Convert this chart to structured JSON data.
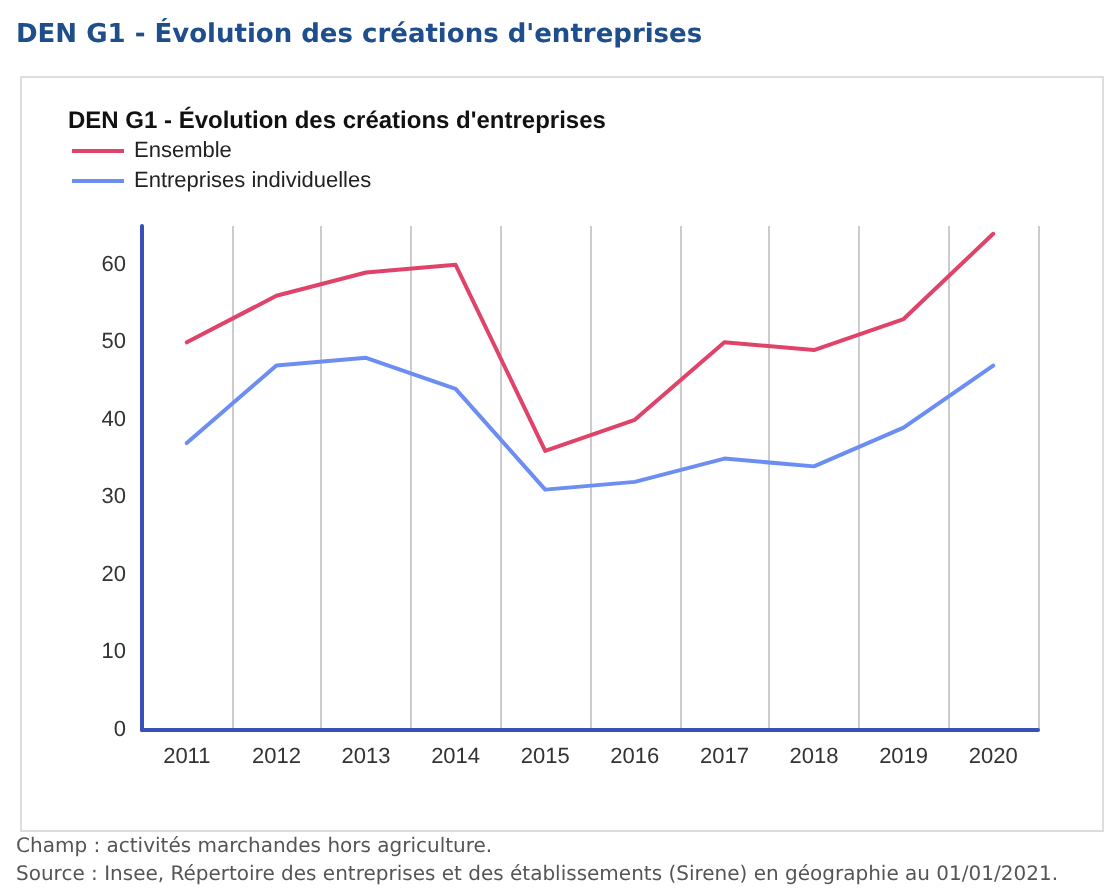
{
  "chart_data": {
    "type": "line",
    "title": "DEN G1 - Évolution des créations d'entreprises",
    "categories": [
      "2011",
      "2012",
      "2013",
      "2014",
      "2015",
      "2016",
      "2017",
      "2018",
      "2019",
      "2020"
    ],
    "series": [
      {
        "name": "Ensemble",
        "color": "#e0436a",
        "values": [
          50,
          56,
          59,
          60,
          36,
          40,
          50,
          49,
          53,
          64
        ]
      },
      {
        "name": "Entreprises individuelles",
        "color": "#6c8ef2",
        "values": [
          37,
          47,
          48,
          44,
          31,
          32,
          35,
          34,
          39,
          47
        ]
      }
    ],
    "ylim": [
      0,
      65
    ],
    "yticks": [
      0,
      10,
      20,
      30,
      40,
      50,
      60
    ],
    "grid": "x",
    "legend": "top left",
    "marker": "none",
    "line_style": "solid",
    "annotations": [
      "DEN G1 - Évolution des créations d'entreprises",
      "Champ : activités marchandes hors agriculture.",
      "Source : Insee, Répertoire des entreprises et des établissements (Sirene) en géographie au 01/01/2021."
    ]
  }
}
